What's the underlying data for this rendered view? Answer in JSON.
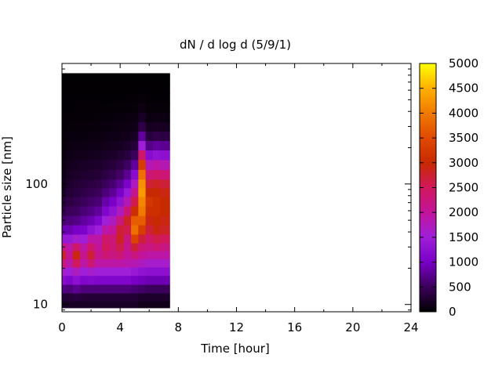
{
  "chart_data": {
    "type": "heatmap",
    "title": "dN / d log d (5/9/1)",
    "xlabel": "Time [hour]",
    "ylabel": "Particle size [nm]",
    "x_range": [
      0,
      24
    ],
    "x_ticks": [
      0,
      4,
      8,
      12,
      16,
      20,
      24
    ],
    "x_tick_labels": [
      "0",
      "4",
      "8",
      "12",
      "16",
      "20",
      "24"
    ],
    "y_scale": "log",
    "y_range": [
      8.7,
      1000
    ],
    "y_tick_labels": [
      "10",
      "100"
    ],
    "y_ticks": [
      10,
      100
    ],
    "colorbar": {
      "range": [
        0,
        5000
      ],
      "ticks": [
        0,
        500,
        1000,
        1500,
        2000,
        2500,
        3000,
        3500,
        4000,
        4500,
        5000
      ],
      "tick_labels": [
        "0",
        "500",
        "1000",
        "1500",
        "2000",
        "2500",
        "3000",
        "3500",
        "4000",
        "4500",
        "5000"
      ],
      "colormap": [
        "#000000",
        "#3b005a",
        "#7a00c8",
        "#9f1fd8",
        "#c2149a",
        "#d1185c",
        "#c82a00",
        "#e04a00",
        "#f07a00",
        "#ffb000",
        "#ffff00"
      ]
    },
    "data_time_range_hours": [
      0,
      7.4
    ],
    "data_size_range_nm": [
      9.4,
      830
    ],
    "time_hours": [
      0.0,
      0.5,
      1.0,
      1.5,
      2.0,
      2.5,
      3.0,
      3.5,
      4.0,
      4.5,
      5.0,
      5.5,
      6.0,
      6.5,
      7.0
    ],
    "size_nm": [
      10,
      11.5,
      13.5,
      16,
      19,
      22,
      26,
      30,
      35,
      42,
      50,
      60,
      72,
      86,
      100,
      120,
      145,
      175,
      210,
      250,
      300,
      360,
      430,
      520,
      620,
      740
    ],
    "dN_dlogd": [
      [
        200,
        300,
        700,
        1200,
        1600,
        2300,
        2800,
        2200,
        1400,
        900,
        600,
        400,
        300,
        200,
        150,
        120,
        100,
        80,
        60,
        50,
        40,
        30,
        25,
        20,
        15,
        10
      ],
      [
        200,
        300,
        650,
        1100,
        1500,
        1900,
        2100,
        1900,
        1400,
        900,
        650,
        500,
        380,
        300,
        250,
        200,
        160,
        120,
        90,
        70,
        50,
        35,
        25,
        20,
        15,
        10
      ],
      [
        200,
        350,
        750,
        1250,
        1700,
        2500,
        2900,
        2400,
        1600,
        1000,
        700,
        520,
        420,
        350,
        300,
        240,
        190,
        140,
        100,
        80,
        60,
        40,
        30,
        20,
        15,
        10
      ],
      [
        200,
        300,
        650,
        1100,
        1500,
        1900,
        2100,
        1900,
        1500,
        1050,
        800,
        620,
        500,
        400,
        330,
        260,
        200,
        150,
        110,
        80,
        60,
        40,
        30,
        20,
        15,
        10
      ],
      [
        200,
        300,
        650,
        1150,
        1600,
        2300,
        2700,
        2400,
        1900,
        1300,
        900,
        700,
        560,
        450,
        360,
        280,
        220,
        160,
        120,
        90,
        60,
        40,
        30,
        20,
        15,
        10
      ],
      [
        200,
        300,
        650,
        1100,
        1500,
        1900,
        2100,
        2000,
        1900,
        1500,
        1100,
        800,
        620,
        500,
        400,
        310,
        240,
        180,
        130,
        90,
        70,
        50,
        30,
        20,
        15,
        10
      ],
      [
        200,
        300,
        650,
        1100,
        1500,
        1900,
        2300,
        2500,
        2400,
        1900,
        1500,
        1100,
        850,
        650,
        500,
        380,
        290,
        210,
        150,
        110,
        80,
        55,
        35,
        20,
        15,
        10
      ],
      [
        200,
        300,
        650,
        1100,
        1500,
        1900,
        2200,
        2300,
        2300,
        2000,
        1700,
        1300,
        1000,
        780,
        600,
        450,
        330,
        240,
        170,
        120,
        90,
        60,
        40,
        25,
        15,
        10
      ],
      [
        200,
        300,
        650,
        1100,
        1500,
        1900,
        2300,
        2600,
        2800,
        2700,
        2200,
        1700,
        1300,
        1000,
        780,
        560,
        400,
        280,
        190,
        130,
        95,
        65,
        40,
        25,
        15,
        10
      ],
      [
        200,
        300,
        650,
        1100,
        1500,
        1850,
        2000,
        2100,
        2200,
        2600,
        2800,
        2300,
        1800,
        1400,
        1050,
        750,
        520,
        350,
        230,
        150,
        100,
        70,
        45,
        25,
        15,
        10
      ],
      [
        200,
        300,
        600,
        1000,
        1400,
        1800,
        2200,
        2700,
        3400,
        3900,
        3700,
        3100,
        2600,
        2100,
        1700,
        1200,
        800,
        500,
        320,
        200,
        130,
        85,
        50,
        30,
        15,
        10
      ],
      [
        150,
        250,
        550,
        950,
        1300,
        1700,
        2000,
        2300,
        2700,
        3300,
        3700,
        4000,
        4100,
        4300,
        4200,
        3900,
        3300,
        2400,
        1500,
        800,
        400,
        200,
        100,
        50,
        20,
        10
      ],
      [
        150,
        250,
        500,
        900,
        1250,
        1600,
        1900,
        2200,
        2400,
        2700,
        2900,
        3100,
        3200,
        3000,
        2700,
        2300,
        1800,
        1200,
        700,
        350,
        180,
        90,
        50,
        25,
        15,
        10
      ],
      [
        150,
        250,
        500,
        900,
        1250,
        1600,
        1900,
        2300,
        2600,
        2900,
        3000,
        3100,
        3100,
        3000,
        2800,
        2400,
        1900,
        1300,
        800,
        400,
        200,
        100,
        50,
        25,
        15,
        10
      ],
      [
        150,
        250,
        500,
        900,
        1250,
        1600,
        1900,
        2200,
        2500,
        2800,
        2900,
        3000,
        3000,
        2900,
        2700,
        2300,
        1800,
        1250,
        750,
        380,
        190,
        95,
        50,
        25,
        15,
        10
      ]
    ]
  }
}
